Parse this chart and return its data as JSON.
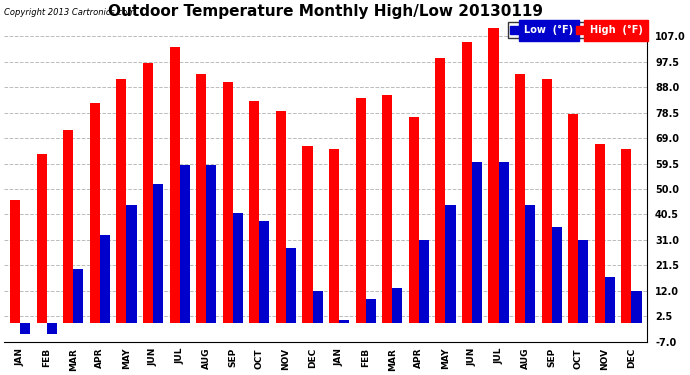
{
  "title": "Outdoor Temperature Monthly High/Low 20130119",
  "copyright": "Copyright 2013 Cartronics.com",
  "legend_low": "Low  (°F)",
  "legend_high": "High  (°F)",
  "months": [
    "JAN",
    "FEB",
    "MAR",
    "APR",
    "MAY",
    "JUN",
    "JUL",
    "AUG",
    "SEP",
    "OCT",
    "NOV",
    "DEC",
    "JAN",
    "FEB",
    "MAR",
    "APR",
    "MAY",
    "JUN",
    "JUL",
    "AUG",
    "SEP",
    "OCT",
    "NOV",
    "DEC"
  ],
  "high_values": [
    46,
    63,
    72,
    82,
    91,
    97,
    103,
    93,
    90,
    83,
    79,
    66,
    65,
    84,
    85,
    77,
    99,
    105,
    110,
    93,
    91,
    78,
    67,
    65
  ],
  "low_values": [
    -4,
    -4,
    20,
    33,
    44,
    52,
    59,
    59,
    41,
    38,
    28,
    12,
    1,
    9,
    13,
    31,
    44,
    60,
    60,
    44,
    36,
    31,
    17,
    12
  ],
  "ylim": [
    -7.0,
    113.0
  ],
  "yticks": [
    -7.0,
    2.5,
    12.0,
    21.5,
    31.0,
    40.5,
    50.0,
    59.5,
    69.0,
    78.5,
    88.0,
    97.5,
    107.0
  ],
  "bar_width": 0.38,
  "high_color": "#ff0000",
  "low_color": "#0000cc",
  "bg_color": "#ffffff",
  "grid_color": "#bbbbbb",
  "title_fontsize": 11,
  "label_fontsize": 6.5,
  "tick_fontsize": 7,
  "figwidth": 6.9,
  "figheight": 3.75,
  "dpi": 100
}
